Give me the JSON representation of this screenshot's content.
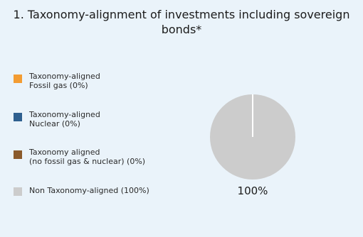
{
  "title": {
    "line1": "1. Taxonomy-alignment of investments including sovereign",
    "line2": "bonds*"
  },
  "legend": [
    {
      "lines": [
        "Taxonomy-aligned",
        "Fossil gas (0%)"
      ],
      "color": "#f39c32"
    },
    {
      "lines": [
        "Taxonomy-aligned",
        "Nuclear (0%)"
      ],
      "color": "#2e5f8f"
    },
    {
      "lines": [
        "Taxonomy aligned",
        "(no fossil gas & nuclear) (0%)"
      ],
      "color": "#8a5a2b"
    },
    {
      "lines": [
        "Non Taxonomy-aligned (100%)"
      ],
      "color": "#cccccc"
    }
  ],
  "chart_data": {
    "type": "pie",
    "title": "1. Taxonomy-alignment of investments including sovereign bonds*",
    "categories": [
      "Taxonomy-aligned Fossil gas",
      "Taxonomy-aligned Nuclear",
      "Taxonomy aligned (no fossil gas & nuclear)",
      "Non Taxonomy-aligned"
    ],
    "values": [
      0,
      0,
      0,
      100
    ],
    "colors": [
      "#f39c32",
      "#2e5f8f",
      "#8a5a2b",
      "#cccccc"
    ],
    "data_labels": [
      "100%"
    ],
    "legend_position": "left"
  }
}
